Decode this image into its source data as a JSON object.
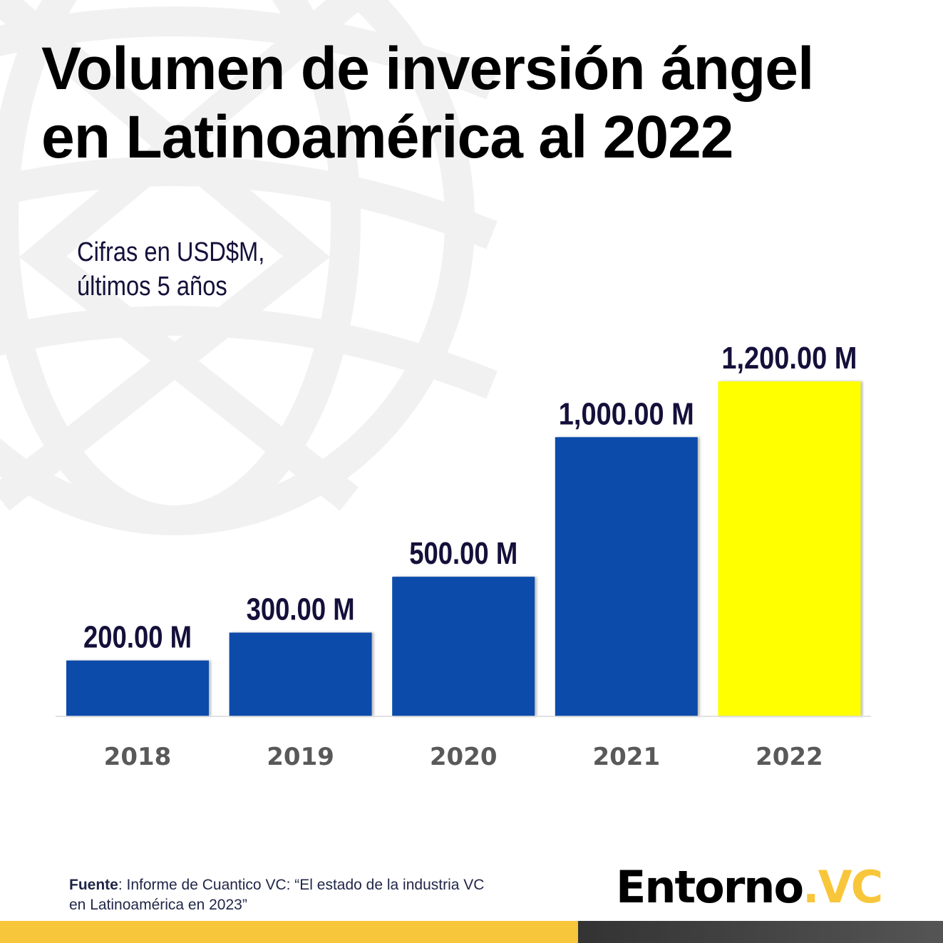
{
  "header": {
    "title_line1": "Volumen de inversión ángel",
    "title_line2": "en Latinoamérica al 2022",
    "subtitle_line1": "Cifras en USD$M,",
    "subtitle_line2": "últimos 5 años"
  },
  "footer": {
    "source_label": "Fuente",
    "source_text": ":  Informe de Cuantico VC: “El estado de la industria VC",
    "source_text_line2": "en Latinoamérica  en 2023”",
    "brand_name": "Entorno",
    "brand_accent": ".VC"
  },
  "colors": {
    "bar_default": "#084BAA",
    "bar_highlight": "#FFFF00",
    "brand_yellow": "#F8C63A",
    "label_dark": "#14103A",
    "axis_label": "#595959"
  },
  "chart_data": {
    "type": "bar",
    "title": "Volumen de inversión ángel en Latinoamérica al 2022",
    "subtitle": "Cifras en USD$M, últimos 5 años",
    "xlabel": "",
    "ylabel": "USD$M",
    "categories": [
      "2018",
      "2019",
      "2020",
      "2021",
      "2022"
    ],
    "values": [
      200,
      300,
      500,
      1000,
      1200
    ],
    "data_labels": [
      "200.00 M",
      "300.00 M",
      "500.00 M",
      "1,000.00 M",
      "1,200.00 M"
    ],
    "highlight_index": 4,
    "ylim": [
      0,
      1200
    ],
    "grid": false,
    "legend": "none"
  }
}
